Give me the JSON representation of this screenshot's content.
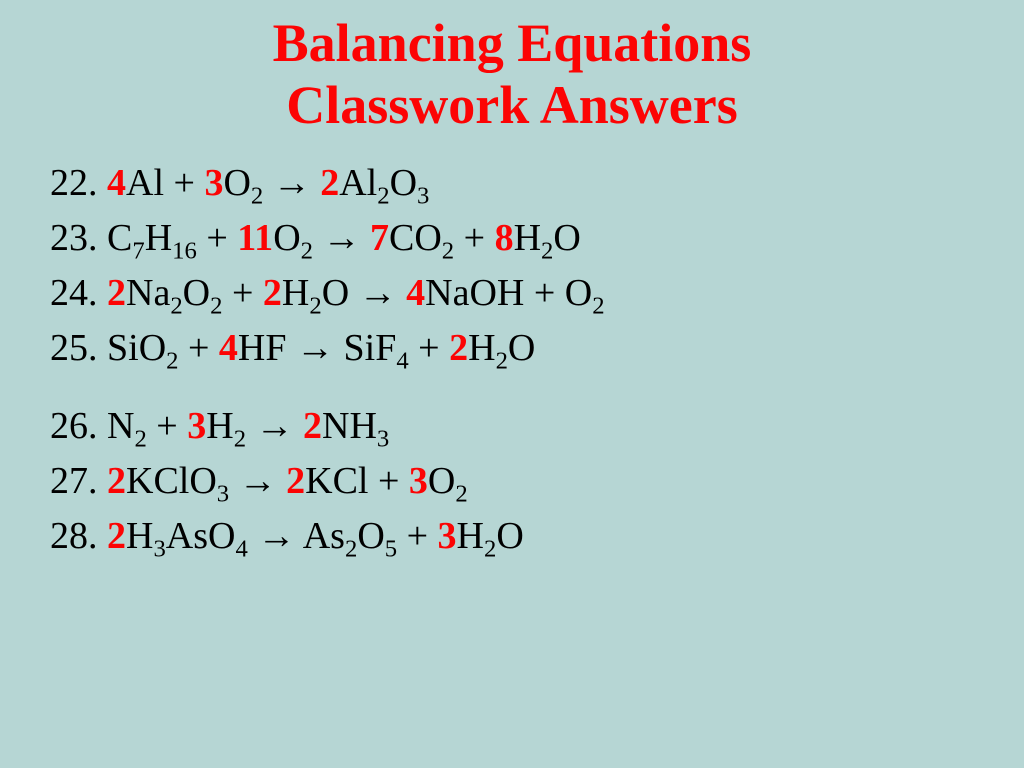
{
  "colors": {
    "background": "#b6d6d4",
    "title": "#fc0404",
    "coefficient": "#fc0404",
    "formula": "#000000"
  },
  "typography": {
    "font_family": "Comic Sans MS",
    "title_fontsize": 54,
    "equation_fontsize": 38,
    "title_weight": "bold"
  },
  "title": {
    "line1": "Balancing Equations",
    "line2": "Classwork Answers"
  },
  "equations": [
    {
      "num": "22",
      "tokens": [
        {
          "t": "num",
          "v": "22. "
        },
        {
          "t": "coef",
          "v": "4"
        },
        {
          "t": "f",
          "v": "Al + "
        },
        {
          "t": "coef",
          "v": "3"
        },
        {
          "t": "f",
          "v": "O"
        },
        {
          "t": "sub",
          "v": "2"
        },
        {
          "t": "f",
          "v": " → "
        },
        {
          "t": "coef",
          "v": "2"
        },
        {
          "t": "f",
          "v": "Al"
        },
        {
          "t": "sub",
          "v": "2"
        },
        {
          "t": "f",
          "v": "O"
        },
        {
          "t": "sub",
          "v": "3"
        }
      ]
    },
    {
      "num": "23",
      "tokens": [
        {
          "t": "num",
          "v": "23. "
        },
        {
          "t": "f",
          "v": "C"
        },
        {
          "t": "sub",
          "v": "7"
        },
        {
          "t": "f",
          "v": "H"
        },
        {
          "t": "sub",
          "v": "16"
        },
        {
          "t": "f",
          "v": " + "
        },
        {
          "t": "coef",
          "v": "11"
        },
        {
          "t": "f",
          "v": "O"
        },
        {
          "t": "sub",
          "v": "2"
        },
        {
          "t": "f",
          "v": " → "
        },
        {
          "t": "coef",
          "v": "7"
        },
        {
          "t": "f",
          "v": "CO"
        },
        {
          "t": "sub",
          "v": "2"
        },
        {
          "t": "f",
          "v": " + "
        },
        {
          "t": "coef",
          "v": "8"
        },
        {
          "t": "f",
          "v": "H"
        },
        {
          "t": "sub",
          "v": "2"
        },
        {
          "t": "f",
          "v": "O"
        }
      ]
    },
    {
      "num": "24",
      "tokens": [
        {
          "t": "num",
          "v": "24. "
        },
        {
          "t": "coef",
          "v": "2"
        },
        {
          "t": "f",
          "v": "Na"
        },
        {
          "t": "sub",
          "v": "2"
        },
        {
          "t": "f",
          "v": "O"
        },
        {
          "t": "sub",
          "v": "2"
        },
        {
          "t": "f",
          "v": " + "
        },
        {
          "t": "coef",
          "v": "2"
        },
        {
          "t": "f",
          "v": "H"
        },
        {
          "t": "sub",
          "v": "2"
        },
        {
          "t": "f",
          "v": "O → "
        },
        {
          "t": "coef",
          "v": "4"
        },
        {
          "t": "f",
          "v": "NaOH + O"
        },
        {
          "t": "sub",
          "v": "2"
        }
      ]
    },
    {
      "num": "25",
      "tokens": [
        {
          "t": "num",
          "v": "25. "
        },
        {
          "t": "f",
          "v": "SiO"
        },
        {
          "t": "sub",
          "v": "2"
        },
        {
          "t": "f",
          "v": " + "
        },
        {
          "t": "coef",
          "v": "4"
        },
        {
          "t": "f",
          "v": "HF → SiF"
        },
        {
          "t": "sub",
          "v": "4"
        },
        {
          "t": "f",
          "v": " + "
        },
        {
          "t": "coef",
          "v": "2"
        },
        {
          "t": "f",
          "v": "H"
        },
        {
          "t": "sub",
          "v": "2"
        },
        {
          "t": "f",
          "v": "O"
        }
      ]
    },
    {
      "gap": true
    },
    {
      "num": "26",
      "tokens": [
        {
          "t": "num",
          "v": "26. "
        },
        {
          "t": "f",
          "v": "N"
        },
        {
          "t": "sub",
          "v": "2"
        },
        {
          "t": "f",
          "v": " + "
        },
        {
          "t": "coef",
          "v": "3"
        },
        {
          "t": "f",
          "v": "H"
        },
        {
          "t": "sub",
          "v": "2"
        },
        {
          "t": "f",
          "v": " → "
        },
        {
          "t": "coef",
          "v": "2"
        },
        {
          "t": "f",
          "v": "NH"
        },
        {
          "t": "sub",
          "v": "3"
        }
      ]
    },
    {
      "num": "27",
      "tokens": [
        {
          "t": "num",
          "v": "27. "
        },
        {
          "t": "coef",
          "v": "2"
        },
        {
          "t": "f",
          "v": "KClO"
        },
        {
          "t": "sub",
          "v": "3"
        },
        {
          "t": "f",
          "v": " → "
        },
        {
          "t": "coef",
          "v": "2"
        },
        {
          "t": "f",
          "v": "KCl + "
        },
        {
          "t": "coef",
          "v": "3"
        },
        {
          "t": "f",
          "v": "O"
        },
        {
          "t": "sub",
          "v": "2"
        }
      ]
    },
    {
      "num": "28",
      "tokens": [
        {
          "t": "num",
          "v": "28. "
        },
        {
          "t": "coef",
          "v": "2"
        },
        {
          "t": "f",
          "v": "H"
        },
        {
          "t": "sub",
          "v": "3"
        },
        {
          "t": "f",
          "v": "AsO"
        },
        {
          "t": "sub",
          "v": "4"
        },
        {
          "t": "f",
          "v": " → As"
        },
        {
          "t": "sub",
          "v": "2"
        },
        {
          "t": "f",
          "v": "O"
        },
        {
          "t": "sub",
          "v": "5"
        },
        {
          "t": "f",
          "v": " + "
        },
        {
          "t": "coef",
          "v": "3"
        },
        {
          "t": "f",
          "v": "H"
        },
        {
          "t": "sub",
          "v": "2"
        },
        {
          "t": "f",
          "v": "O"
        }
      ]
    }
  ]
}
